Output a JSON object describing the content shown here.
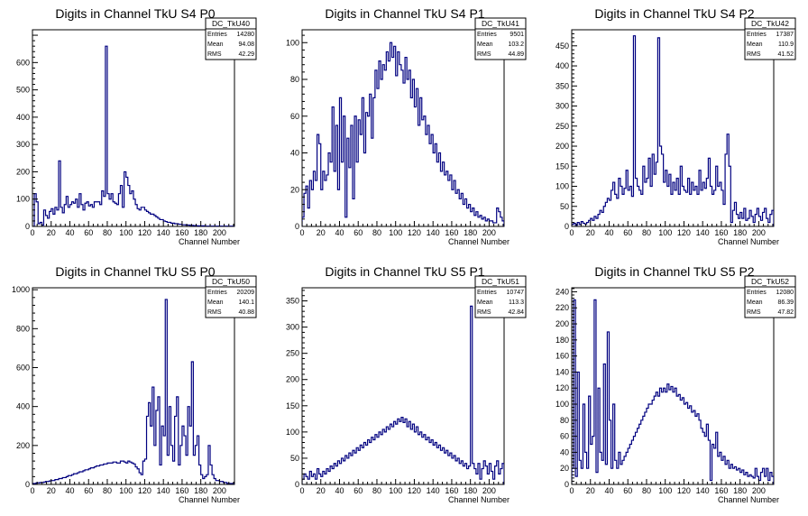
{
  "colors": {
    "line": "#000080",
    "axis": "#000000",
    "background": "#ffffff"
  },
  "chart_data": [
    {
      "type": "histogram",
      "title": "Digits in Channel TkU S4 P0",
      "xlabel": "Channel Number",
      "xlim": [
        0,
        216
      ],
      "ylim": [
        0,
        720
      ],
      "xticks": [
        0,
        20,
        40,
        60,
        80,
        100,
        120,
        140,
        160,
        180,
        200
      ],
      "yticks": [
        0,
        100,
        200,
        300,
        400,
        500,
        600
      ],
      "stats": {
        "name": "DC_TkU40",
        "rows": [
          [
            "Entries",
            "14280"
          ],
          [
            "Mean",
            "94.08"
          ],
          [
            "RMS",
            "42.29"
          ]
        ]
      },
      "bin_width": 2,
      "values": [
        0,
        120,
        90,
        10,
        15,
        5,
        60,
        40,
        30,
        55,
        65,
        45,
        70,
        60,
        240,
        70,
        50,
        80,
        110,
        70,
        80,
        90,
        85,
        100,
        70,
        120,
        80,
        60,
        85,
        90,
        75,
        80,
        70,
        90,
        90,
        90,
        80,
        130,
        110,
        660,
        120,
        100,
        120,
        90,
        85,
        80,
        120,
        150,
        70,
        200,
        180,
        150,
        120,
        130,
        100,
        80,
        65,
        60,
        70,
        70,
        60,
        55,
        50,
        45,
        45,
        40,
        35,
        30,
        25,
        25,
        20,
        18,
        15,
        15,
        12,
        12,
        10,
        10,
        8,
        8,
        6,
        6,
        5,
        5,
        4,
        4,
        3,
        3,
        2,
        2,
        2,
        2,
        1,
        1,
        1,
        1,
        1,
        1,
        1,
        1,
        1,
        1,
        1,
        1,
        1,
        1,
        1,
        1
      ]
    },
    {
      "type": "histogram",
      "title": "Digits in Channel TkU S4 P1",
      "xlabel": "Channel Number",
      "xlim": [
        0,
        216
      ],
      "ylim": [
        0,
        107
      ],
      "xticks": [
        0,
        20,
        40,
        60,
        80,
        100,
        120,
        140,
        160,
        180,
        200
      ],
      "yticks": [
        0,
        20,
        40,
        60,
        80,
        100
      ],
      "stats": {
        "name": "DC_TkU41",
        "rows": [
          [
            "Entries",
            "9501"
          ],
          [
            "Mean",
            "103.2"
          ],
          [
            "RMS",
            "44.89"
          ]
        ]
      },
      "bin_width": 2,
      "values": [
        5,
        18,
        22,
        10,
        25,
        20,
        30,
        25,
        50,
        45,
        20,
        30,
        25,
        28,
        40,
        35,
        65,
        30,
        55,
        20,
        70,
        35,
        60,
        5,
        48,
        32,
        55,
        15,
        60,
        35,
        58,
        50,
        70,
        40,
        62,
        60,
        72,
        48,
        70,
        85,
        75,
        90,
        80,
        88,
        85,
        95,
        90,
        100,
        92,
        98,
        82,
        95,
        88,
        85,
        78,
        92,
        80,
        85,
        70,
        80,
        65,
        75,
        55,
        70,
        58,
        60,
        50,
        55,
        45,
        50,
        40,
        45,
        35,
        40,
        30,
        35,
        28,
        30,
        25,
        28,
        20,
        25,
        18,
        20,
        15,
        18,
        12,
        15,
        10,
        12,
        8,
        10,
        6,
        8,
        5,
        6,
        4,
        5,
        3,
        4,
        3,
        3,
        2,
        2,
        10,
        8,
        5,
        3
      ]
    },
    {
      "type": "histogram",
      "title": "Digits in Channel TkU S4 P2",
      "xlabel": "Channel Number",
      "xlim": [
        0,
        216
      ],
      "ylim": [
        0,
        490
      ],
      "xticks": [
        0,
        20,
        40,
        60,
        80,
        100,
        120,
        140,
        160,
        180,
        200
      ],
      "yticks": [
        0,
        50,
        100,
        150,
        200,
        250,
        300,
        350,
        400,
        450
      ],
      "stats": {
        "name": "DC_TkU42",
        "rows": [
          [
            "Entries",
            "17387"
          ],
          [
            "Mean",
            "110.9"
          ],
          [
            "RMS",
            "41.52"
          ]
        ]
      },
      "bin_width": 2,
      "values": [
        5,
        8,
        3,
        10,
        5,
        12,
        8,
        6,
        10,
        15,
        20,
        15,
        25,
        20,
        30,
        40,
        35,
        50,
        60,
        70,
        65,
        90,
        110,
        80,
        70,
        120,
        100,
        80,
        95,
        140,
        90,
        100,
        75,
        475,
        120,
        100,
        90,
        80,
        150,
        110,
        120,
        170,
        100,
        180,
        130,
        160,
        470,
        200,
        180,
        110,
        140,
        100,
        130,
        80,
        110,
        90,
        120,
        80,
        150,
        100,
        90,
        85,
        120,
        80,
        110,
        90,
        100,
        80,
        140,
        90,
        110,
        95,
        120,
        170,
        100,
        80,
        90,
        150,
        100,
        110,
        90,
        55,
        180,
        230,
        150,
        10,
        40,
        60,
        30,
        20,
        35,
        20,
        45,
        15,
        20,
        40,
        25,
        10,
        30,
        45,
        25,
        15,
        35,
        45,
        20,
        10,
        30,
        40
      ]
    },
    {
      "type": "histogram",
      "title": "Digits in Channel TkU S5 P0",
      "xlabel": "Channel Number",
      "xlim": [
        0,
        216
      ],
      "ylim": [
        0,
        1010
      ],
      "xticks": [
        0,
        20,
        40,
        60,
        80,
        100,
        120,
        140,
        160,
        180,
        200
      ],
      "yticks": [
        0,
        200,
        400,
        600,
        800,
        1000
      ],
      "stats": {
        "name": "DC_TkU50",
        "rows": [
          [
            "Entries",
            "20209"
          ],
          [
            "Mean",
            "140.1"
          ],
          [
            "RMS",
            "40.88"
          ]
        ]
      },
      "bin_width": 2,
      "values": [
        5,
        5,
        8,
        8,
        10,
        10,
        12,
        15,
        15,
        18,
        20,
        20,
        25,
        25,
        30,
        30,
        35,
        35,
        40,
        45,
        45,
        50,
        55,
        55,
        60,
        65,
        65,
        70,
        75,
        75,
        80,
        85,
        85,
        90,
        95,
        95,
        100,
        100,
        105,
        105,
        110,
        110,
        110,
        115,
        115,
        110,
        110,
        120,
        120,
        115,
        110,
        120,
        115,
        110,
        105,
        90,
        80,
        60,
        50,
        120,
        130,
        350,
        420,
        300,
        500,
        200,
        380,
        450,
        100,
        300,
        250,
        950,
        150,
        400,
        200,
        120,
        350,
        450,
        100,
        200,
        300,
        250,
        150,
        400,
        300,
        630,
        150,
        200,
        250,
        100,
        50,
        30,
        40,
        50,
        200,
        100,
        50,
        30,
        20,
        20,
        15,
        15,
        10,
        10,
        5,
        5,
        5,
        5
      ]
    },
    {
      "type": "histogram",
      "title": "Digits in Channel TkU S5 P1",
      "xlabel": "Channel Number",
      "xlim": [
        0,
        216
      ],
      "ylim": [
        0,
        375
      ],
      "xticks": [
        0,
        20,
        40,
        60,
        80,
        100,
        120,
        140,
        160,
        180,
        200
      ],
      "yticks": [
        0,
        50,
        100,
        150,
        200,
        250,
        300,
        350
      ],
      "stats": {
        "name": "DC_TkU51",
        "rows": [
          [
            "Entries",
            "10747"
          ],
          [
            "Mean",
            "113.3"
          ],
          [
            "RMS",
            "42.84"
          ]
        ]
      },
      "bin_width": 2,
      "values": [
        10,
        20,
        15,
        10,
        25,
        15,
        20,
        10,
        30,
        20,
        15,
        25,
        20,
        30,
        25,
        35,
        30,
        40,
        35,
        45,
        40,
        50,
        45,
        55,
        50,
        60,
        55,
        65,
        60,
        70,
        65,
        75,
        70,
        80,
        75,
        85,
        80,
        90,
        85,
        95,
        90,
        100,
        95,
        105,
        100,
        110,
        105,
        115,
        110,
        120,
        115,
        125,
        120,
        128,
        118,
        125,
        110,
        120,
        105,
        115,
        100,
        110,
        95,
        100,
        90,
        95,
        85,
        90,
        80,
        85,
        75,
        80,
        70,
        75,
        65,
        70,
        60,
        65,
        55,
        60,
        50,
        55,
        45,
        50,
        40,
        45,
        35,
        40,
        30,
        35,
        340,
        40,
        30,
        20,
        40,
        10,
        30,
        45,
        35,
        20,
        40,
        25,
        10,
        35,
        45,
        20,
        30,
        40
      ]
    },
    {
      "type": "histogram",
      "title": "Digits in Channel TkU S5 P2",
      "xlabel": "Channel Number",
      "xlim": [
        0,
        216
      ],
      "ylim": [
        0,
        245
      ],
      "xticks": [
        0,
        20,
        40,
        60,
        80,
        100,
        120,
        140,
        160,
        180,
        200
      ],
      "yticks": [
        0,
        20,
        40,
        60,
        80,
        100,
        120,
        140,
        160,
        180,
        200,
        220,
        240
      ],
      "stats": {
        "name": "DC_TkU52",
        "rows": [
          [
            "Entries",
            "12080"
          ],
          [
            "Mean",
            "86.39"
          ],
          [
            "RMS",
            "47.82"
          ]
        ]
      },
      "bin_width": 2,
      "values": [
        20,
        230,
        10,
        140,
        30,
        20,
        100,
        40,
        20,
        110,
        50,
        60,
        230,
        15,
        120,
        40,
        30,
        150,
        25,
        190,
        80,
        20,
        100,
        30,
        20,
        40,
        25,
        30,
        35,
        40,
        45,
        50,
        55,
        60,
        65,
        70,
        75,
        80,
        85,
        90,
        95,
        100,
        100,
        105,
        110,
        115,
        110,
        120,
        115,
        120,
        115,
        125,
        118,
        122,
        115,
        120,
        110,
        112,
        105,
        108,
        100,
        102,
        95,
        98,
        90,
        92,
        85,
        88,
        80,
        70,
        65,
        60,
        75,
        55,
        5,
        50,
        45,
        65,
        35,
        40,
        30,
        35,
        25,
        30,
        20,
        25,
        20,
        22,
        18,
        20,
        15,
        18,
        12,
        15,
        10,
        12,
        10,
        8,
        20,
        10,
        5,
        15,
        20,
        10,
        20,
        5,
        15,
        10
      ]
    }
  ]
}
